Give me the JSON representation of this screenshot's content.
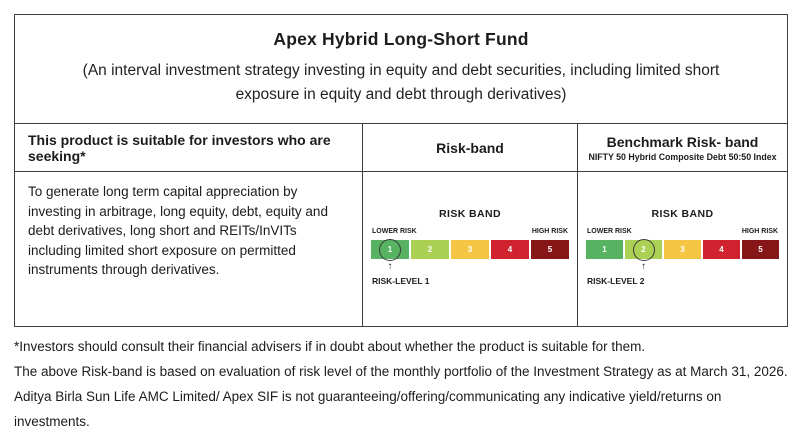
{
  "table": {
    "title": "Apex Hybrid Long-Short Fund",
    "subtitle": "(An interval investment strategy investing in equity and debt securities, including limited short exposure in equity and debt through derivatives)",
    "header": {
      "suitability": "This product is suitable for investors who are seeking*",
      "risk_band": "Risk-band",
      "benchmark_line1": "Benchmark Risk- band",
      "benchmark_line2": "NIFTY 50 Hybrid Composite Debt 50:50 Index"
    },
    "suitability_text": "To generate long  term capital appreciation by investing in arbitrage, long equity, debt, equity and debt derivatives, long short and REITs/InVITs including limited short exposure on permitted instruments through derivatives."
  },
  "risk_band_template": {
    "heading": "RISK BAND",
    "lower_label": "LOWER RISK",
    "high_label": "HIGH RISK",
    "levels": [
      "1",
      "2",
      "3",
      "4",
      "5"
    ],
    "colors": [
      "#57b261",
      "#abd154",
      "#f5c644",
      "#d1232f",
      "#871619"
    ],
    "arrow_icon": "↑",
    "ring_color": "#3a3a3a"
  },
  "fund_risk_band": {
    "selected_level": "1",
    "level_label": "RISK-LEVEL 1"
  },
  "benchmark_risk_band": {
    "selected_level": "2",
    "level_label": "RISK-LEVEL 2"
  },
  "footnotes": [
    "*Investors should consult their financial advisers if in doubt about whether the product is suitable for them.",
    "The above Risk-band is based on evaluation of risk level of the monthly portfolio of the Investment Strategy as at March 31, 2026.",
    "Aditya Birla Sun Life AMC Limited/ Apex SIF is not guaranteeing/offering/communicating any indicative yield/returns on investments."
  ]
}
